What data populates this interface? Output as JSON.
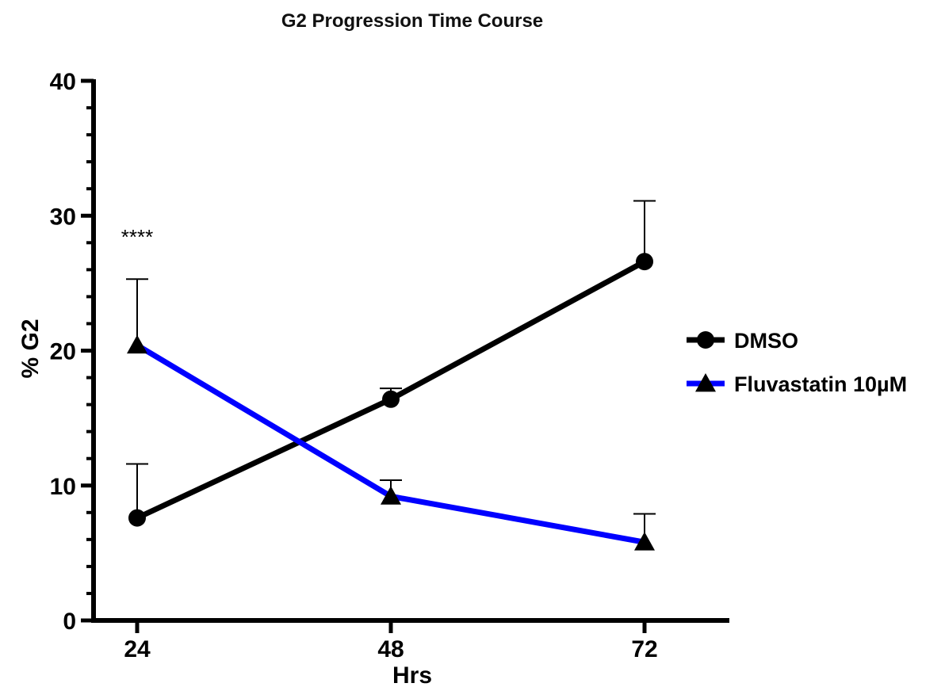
{
  "chart_data": {
    "type": "line",
    "title": "G2 Progression Time Course",
    "xlabel": "Hrs",
    "ylabel": "% G2",
    "x": [
      24,
      48,
      72
    ],
    "x_tick_labels": [
      "24",
      "48",
      "72"
    ],
    "ylim": [
      0,
      40
    ],
    "y_ticks": [
      0,
      10,
      20,
      30,
      40
    ],
    "y_tick_labels": [
      "0",
      "10",
      "20",
      "30",
      "40"
    ],
    "grid": false,
    "legend_position": "right",
    "series": [
      {
        "name": "DMSO",
        "marker": "circle",
        "color": "#000000",
        "values": [
          7.6,
          16.4,
          26.6
        ],
        "error_upper": [
          4.0,
          0.8,
          4.5
        ]
      },
      {
        "name": "Fluvastatin 10µM",
        "marker": "triangle",
        "color": "#0000ff",
        "values": [
          20.4,
          9.2,
          5.8
        ],
        "error_upper": [
          4.9,
          1.2,
          2.1
        ]
      }
    ],
    "annotations": [
      {
        "text": "****",
        "x": 24,
        "y": 28.5
      }
    ]
  }
}
